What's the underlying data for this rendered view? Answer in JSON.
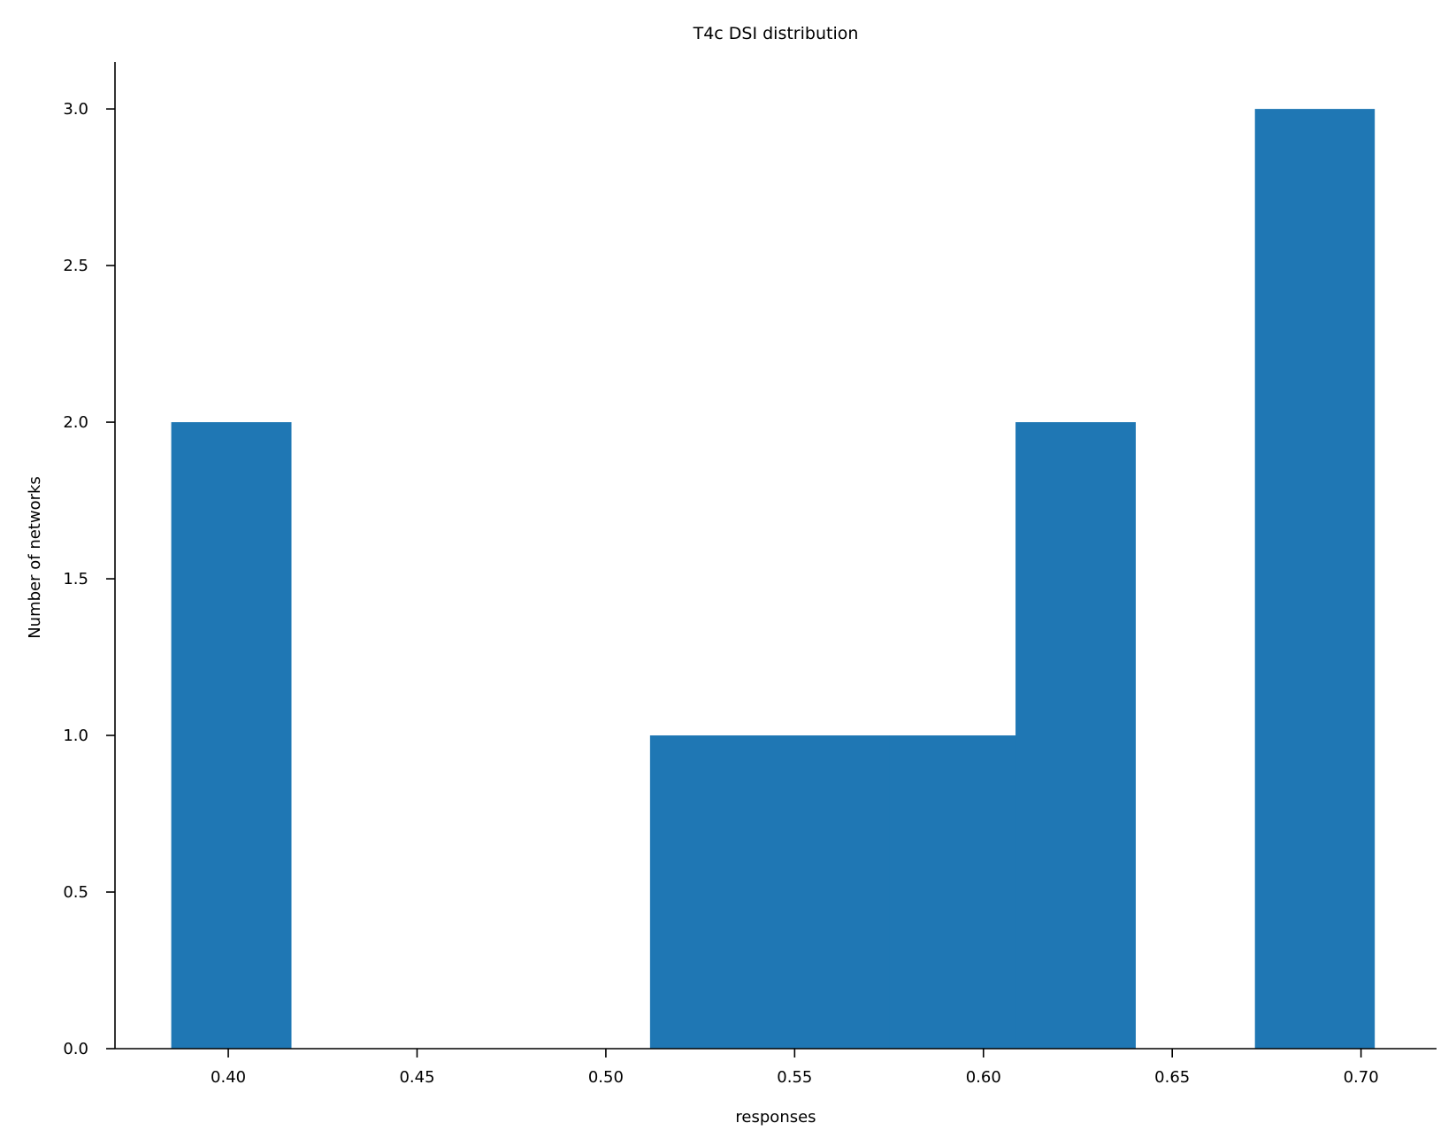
{
  "chart_data": {
    "type": "bar",
    "title": "T4c DSI distribution",
    "xlabel": "responses",
    "ylabel": "Number of networks",
    "xlim": [
      0.37,
      0.72
    ],
    "ylim": [
      0.0,
      3.15
    ],
    "xticks": [
      0.4,
      0.45,
      0.5,
      0.55,
      0.6,
      0.65,
      0.7
    ],
    "xtick_labels": [
      "0.40",
      "0.45",
      "0.50",
      "0.55",
      "0.60",
      "0.65",
      "0.70"
    ],
    "yticks": [
      0.0,
      0.5,
      1.0,
      1.5,
      2.0,
      2.5,
      3.0
    ],
    "ytick_labels": [
      "0.0",
      "0.5",
      "1.0",
      "1.5",
      "2.0",
      "2.5",
      "3.0"
    ],
    "grid": false,
    "bins": [
      {
        "x0": 0.3849,
        "x1": 0.4166,
        "count": 2
      },
      {
        "x0": 0.4166,
        "x1": 0.4483,
        "count": 0
      },
      {
        "x0": 0.4483,
        "x1": 0.48,
        "count": 0
      },
      {
        "x0": 0.48,
        "x1": 0.5117,
        "count": 0
      },
      {
        "x0": 0.5117,
        "x1": 0.5434,
        "count": 1
      },
      {
        "x0": 0.5434,
        "x1": 0.5751,
        "count": 1
      },
      {
        "x0": 0.5751,
        "x1": 0.6085,
        "count": 1
      },
      {
        "x0": 0.6085,
        "x1": 0.6402,
        "count": 2
      },
      {
        "x0": 0.6402,
        "x1": 0.6719,
        "count": 0
      },
      {
        "x0": 0.6719,
        "x1": 0.7035,
        "count": 3
      }
    ],
    "colors": {
      "bar": "#1f77b4",
      "axis": "#000000"
    }
  }
}
